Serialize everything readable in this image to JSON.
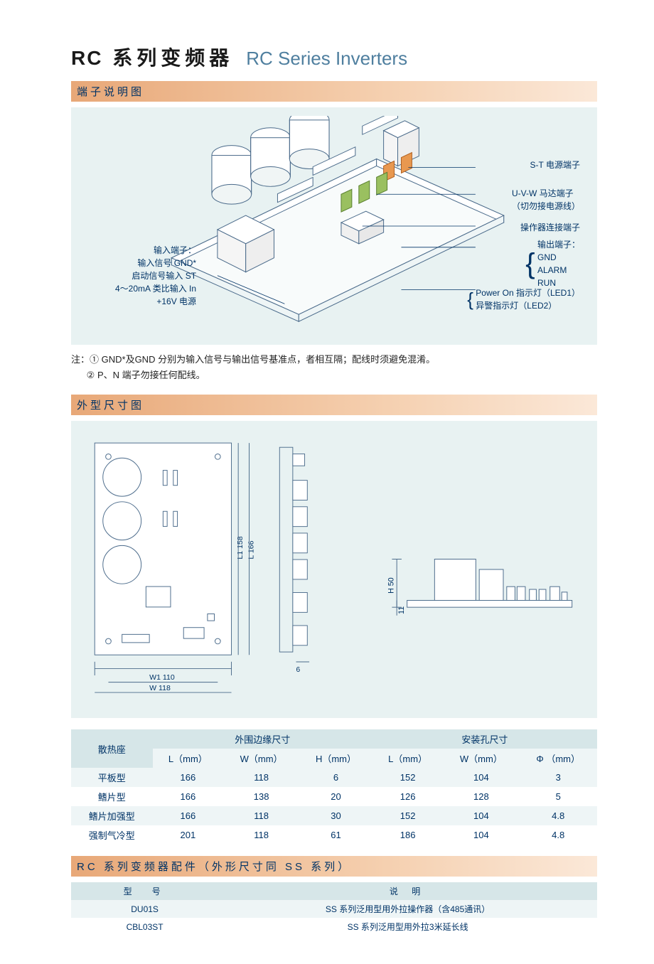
{
  "colors": {
    "panel_bg": "#e8f2f2",
    "header_grad_start": "#e8a878",
    "header_grad_end": "#fbe8d8",
    "text_blue": "#003366",
    "pcb_green": "#a8d080",
    "board_edge": "#4a6a8a",
    "tab_orange": "#e89850",
    "tab_green": "#9ac060",
    "table_row_a": "#eef5f6",
    "table_row_b": "#ffffff",
    "table_head": "#d6e6e8"
  },
  "title": {
    "cn_prefix": "RC",
    "cn": "系列变频器",
    "en": "RC Series Inverters"
  },
  "sections": {
    "terminal": "端子说明图",
    "dimensions": "外型尺寸图",
    "accessories": "RC 系列变频器配件（外形尺寸同 SS 系列）"
  },
  "callouts": {
    "right": [
      "S-T 电源端子",
      "U-V-W 马达端子",
      "（切勿接电源线）",
      "操作器连接端子",
      "输出端子：",
      "GND",
      "ALARM",
      "RUN",
      "Power On 指示灯（LED1）",
      "异警指示灯（LED2）"
    ],
    "left": [
      "输入端子：",
      "输入信号 GND*",
      "启动信号输入 ST",
      "4～20mA 类比输入 In",
      "+16V 电源"
    ]
  },
  "notes": {
    "prefix": "注：",
    "line1": "① GND*及GND 分别为输入信号与输出信号基准点，者相互隔；配线时须避免混淆。",
    "line2": "② P、N 端子勿接任何配线。"
  },
  "dimensions": {
    "w1": "W1  110",
    "w": "W  118",
    "l1": "L1  158",
    "l": "L  166",
    "h": "H 50",
    "h2": "11",
    "six": "6"
  },
  "table1": {
    "group_col": "散热座",
    "group1": "外围边缘尺寸",
    "group2": "安装孔尺寸",
    "headers": [
      "L（mm）",
      "W（mm）",
      "H（mm）",
      "L（mm）",
      "W（mm）",
      "Φ （mm）"
    ],
    "rows": [
      {
        "name": "平板型",
        "vals": [
          "166",
          "118",
          "6",
          "152",
          "104",
          "3"
        ]
      },
      {
        "name": "鳍片型",
        "vals": [
          "166",
          "138",
          "20",
          "126",
          "128",
          "5"
        ]
      },
      {
        "name": "鳍片加强型",
        "vals": [
          "166",
          "118",
          "30",
          "152",
          "104",
          "4.8"
        ]
      },
      {
        "name": "强制气冷型",
        "vals": [
          "201",
          "118",
          "61",
          "186",
          "104",
          "4.8"
        ]
      }
    ]
  },
  "table2": {
    "h1": "型　号",
    "h2": "说         明",
    "rows": [
      {
        "model": "DU01S",
        "desc": "SS 系列泛用型用外拉操作器（含485通讯）"
      },
      {
        "model": "CBL03ST",
        "desc": "SS 系列泛用型用外拉3米延长线"
      }
    ]
  }
}
